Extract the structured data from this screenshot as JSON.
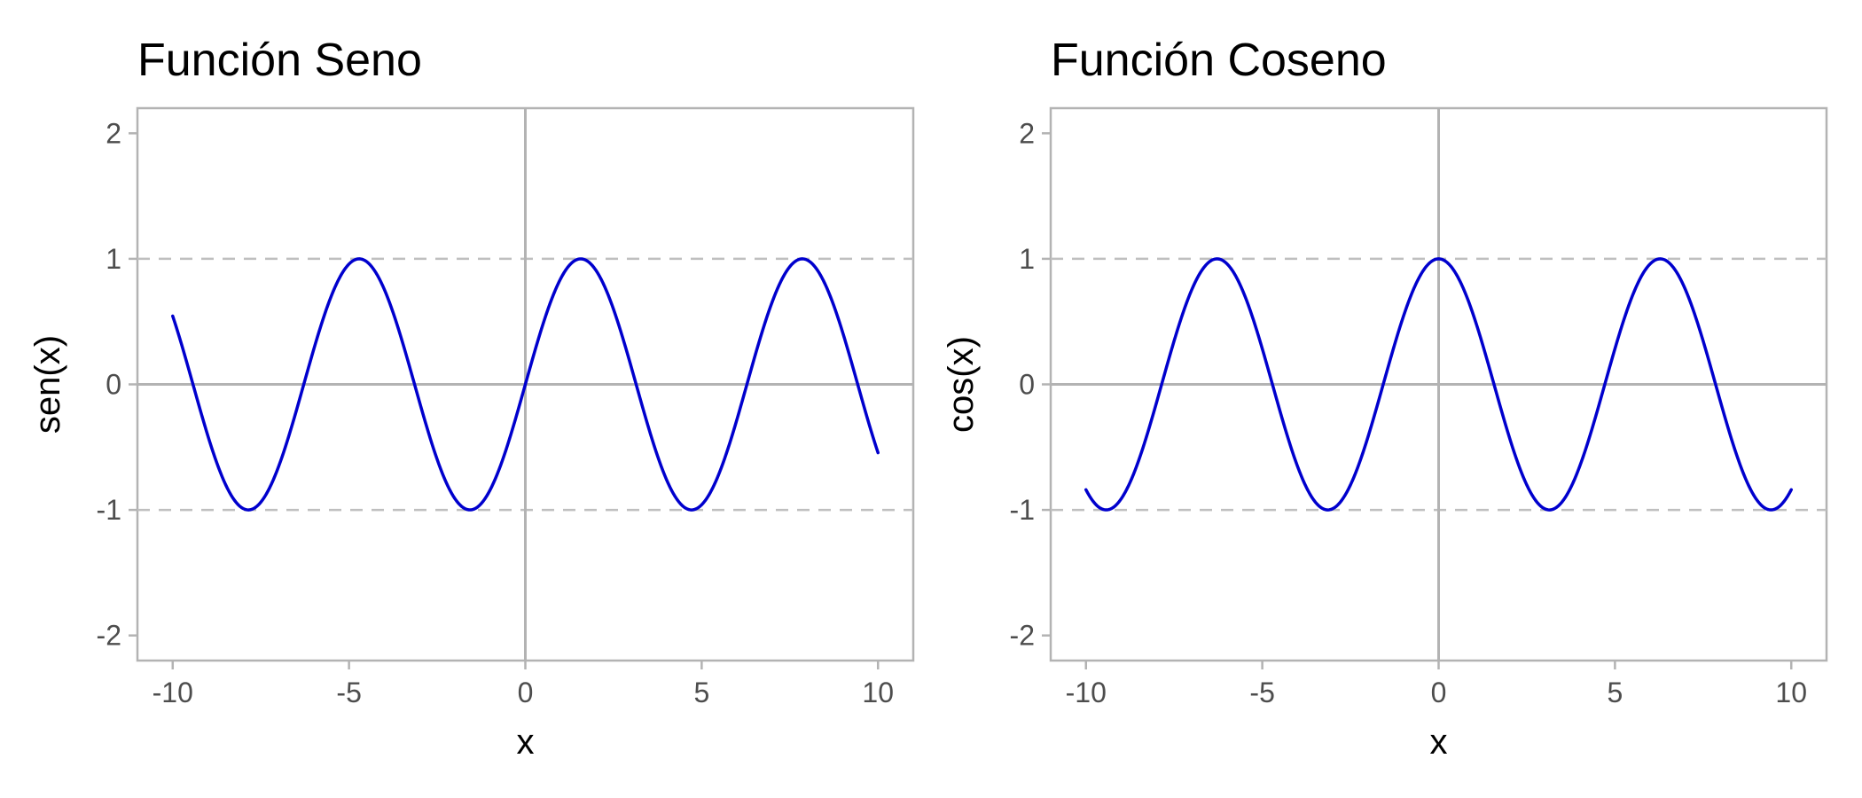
{
  "chart_data": [
    {
      "type": "line",
      "title": "Función Seno",
      "xlabel": "x",
      "ylabel": "sen(x)",
      "function": "sin",
      "x_range": [
        -10,
        10
      ],
      "xlim": [
        -11,
        11
      ],
      "ylim": [
        -2.2,
        2.2
      ],
      "xticks": [
        -10,
        -5,
        0,
        5,
        10
      ],
      "xtick_labels": [
        "-10",
        "-5",
        "0",
        "5",
        "10"
      ],
      "yticks": [
        -2,
        -1,
        0,
        1,
        2
      ],
      "ytick_labels": [
        "-2",
        "-1",
        "0",
        "1",
        "2"
      ],
      "reference_lines_h_dashed": [
        1,
        -1
      ],
      "reference_lines_solid": {
        "x": 0,
        "y": 0
      },
      "grid": false,
      "line_color": "#0000CD",
      "x": [
        -10,
        -9,
        -8,
        -7,
        -6,
        -5,
        -4,
        -3,
        -2,
        -1,
        0,
        1,
        2,
        3,
        4,
        5,
        6,
        7,
        8,
        9,
        10
      ],
      "y": [
        0.544,
        -0.412,
        -0.989,
        -0.657,
        0.279,
        0.959,
        0.757,
        -0.141,
        -0.909,
        -0.841,
        0,
        0.841,
        0.909,
        0.141,
        -0.757,
        -0.959,
        -0.279,
        0.657,
        0.989,
        0.412,
        -0.544
      ]
    },
    {
      "type": "line",
      "title": "Función Coseno",
      "xlabel": "x",
      "ylabel": "cos(x)",
      "function": "cos",
      "x_range": [
        -10,
        10
      ],
      "xlim": [
        -11,
        11
      ],
      "ylim": [
        -2.2,
        2.2
      ],
      "xticks": [
        -10,
        -5,
        0,
        5,
        10
      ],
      "xtick_labels": [
        "-10",
        "-5",
        "0",
        "5",
        "10"
      ],
      "yticks": [
        -2,
        -1,
        0,
        1,
        2
      ],
      "ytick_labels": [
        "-2",
        "-1",
        "0",
        "1",
        "2"
      ],
      "reference_lines_h_dashed": [
        1,
        -1
      ],
      "reference_lines_solid": {
        "x": 0,
        "y": 0
      },
      "grid": false,
      "line_color": "#0000CD",
      "x": [
        -10,
        -9,
        -8,
        -7,
        -6,
        -5,
        -4,
        -3,
        -2,
        -1,
        0,
        1,
        2,
        3,
        4,
        5,
        6,
        7,
        8,
        9,
        10
      ],
      "y": [
        -0.839,
        -0.911,
        -0.146,
        0.754,
        0.96,
        0.284,
        -0.654,
        -0.99,
        -0.416,
        0.54,
        1,
        0.54,
        -0.416,
        -0.99,
        -0.654,
        0.284,
        0.96,
        0.754,
        -0.146,
        -0.911,
        -0.839
      ]
    }
  ],
  "colors": {
    "line": "#0000CD",
    "panel_border": "#b3b3b3",
    "zero_lines": "#b3b3b3",
    "dashed_lines": "#bfbfbf",
    "tick_text": "#4d4d4d",
    "title_text": "#000000"
  }
}
